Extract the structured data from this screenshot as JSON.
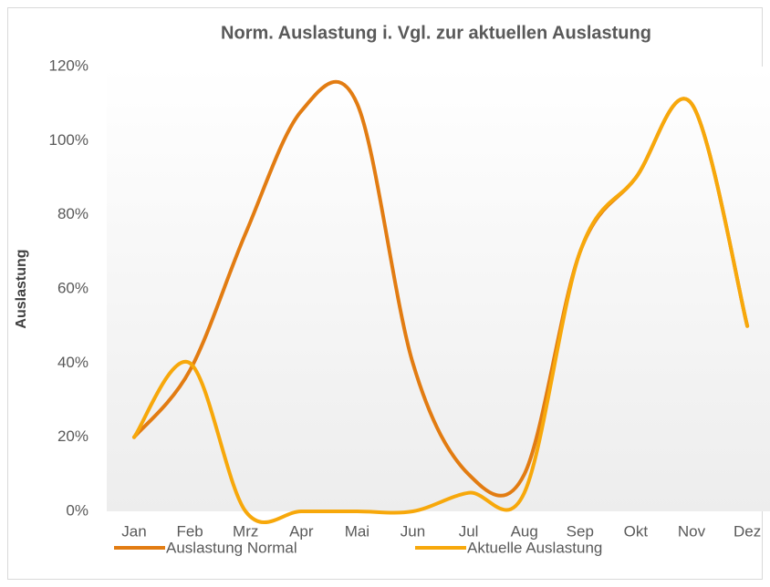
{
  "chart_data": {
    "type": "line",
    "title": "Norm. Auslastung i. Vgl. zur aktuellen Auslastung",
    "y_label": "Auslastung",
    "categories": [
      "Jan",
      "Feb",
      "Mrz",
      "Apr",
      "Mai",
      "Jun",
      "Jul",
      "Aug",
      "Sep",
      "Okt",
      "Nov",
      "Dez"
    ],
    "series": [
      {
        "name": "Auslastung Normal",
        "color": "#e27c12",
        "values": [
          20,
          38,
          75,
          108,
          110,
          40,
          10,
          10,
          70,
          90,
          110,
          50
        ]
      },
      {
        "name": "Aktuelle Auslastung",
        "color": "#f7a80b",
        "values": [
          20,
          40,
          0,
          0,
          0,
          0,
          5,
          5,
          70,
          90,
          110,
          50
        ]
      }
    ],
    "ylim": [
      0,
      120
    ],
    "yticks": [
      {
        "value": 0,
        "label": "0%"
      },
      {
        "value": 20,
        "label": "20%"
      },
      {
        "value": 40,
        "label": "40%"
      },
      {
        "value": 60,
        "label": "60%"
      },
      {
        "value": 80,
        "label": "80%"
      },
      {
        "value": 100,
        "label": "100%"
      },
      {
        "value": 120,
        "label": "120%"
      }
    ],
    "smooth": true,
    "legend": "bottom"
  }
}
